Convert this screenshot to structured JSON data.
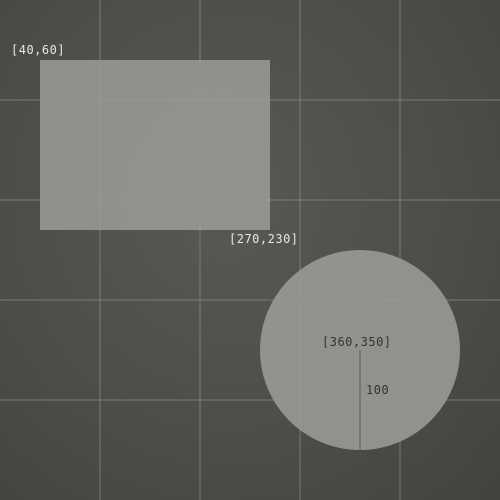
{
  "colors": {
    "background": "#4d4d4a",
    "grid": "#8a8a86",
    "shape_fill": "#9a9a95",
    "label": "#e6e6e2",
    "label_on_shape": "#333331"
  },
  "grid": {
    "spacing": 100
  },
  "rectangle": {
    "top_left_label": "[40,60]",
    "bottom_right_label": "[270,230]"
  },
  "circle": {
    "center_label": "[360,350]",
    "radius_label": "100"
  }
}
